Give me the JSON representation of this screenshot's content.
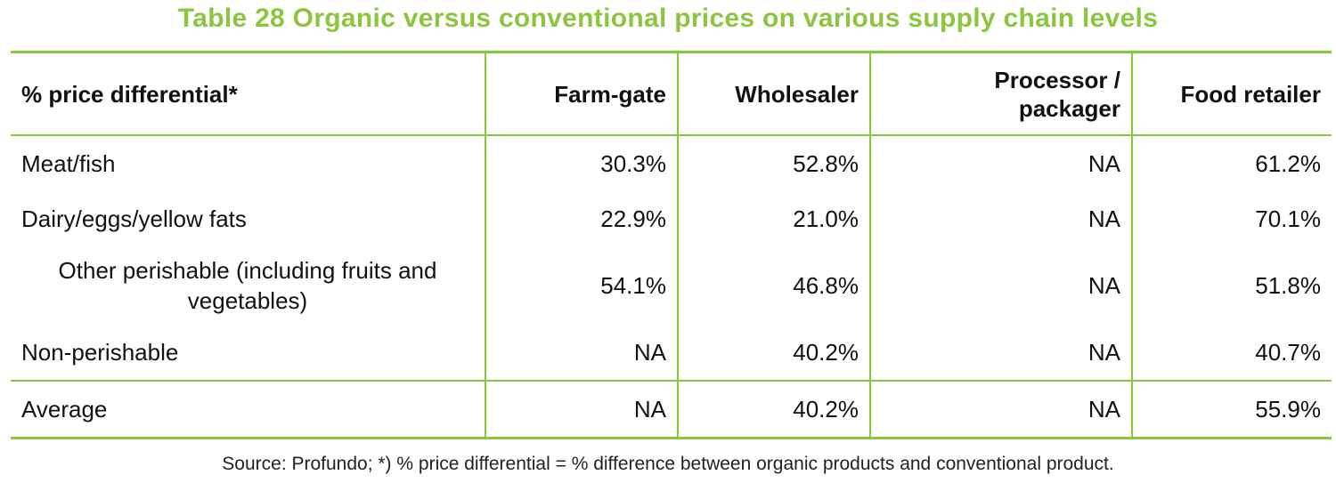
{
  "title": "Table 28   Organic versus conventional prices on various supply chain levels",
  "headers": {
    "label": "% price differential*",
    "farm_gate": "Farm-gate",
    "wholesaler": "Wholesaler",
    "processor_line1": "Processor /",
    "processor_line2": "packager",
    "retailer": "Food retailer"
  },
  "rows": [
    {
      "label": "Meat/fish",
      "farm_gate": "30.3%",
      "wholesaler": "52.8%",
      "processor": "NA",
      "retailer": "61.2%"
    },
    {
      "label": "Dairy/eggs/yellow fats",
      "farm_gate": "22.9%",
      "wholesaler": "21.0%",
      "processor": "NA",
      "retailer": "70.1%"
    },
    {
      "label_line1": "Other perishable (including fruits and",
      "label_line2": "vegetables)",
      "farm_gate": "54.1%",
      "wholesaler": "46.8%",
      "processor": "NA",
      "retailer": "51.8%"
    },
    {
      "label": "Non-perishable",
      "farm_gate": "NA",
      "wholesaler": "40.2%",
      "processor": "NA",
      "retailer": "40.7%"
    }
  ],
  "average": {
    "label": "Average",
    "farm_gate": "NA",
    "wholesaler": "40.2%",
    "processor": "NA",
    "retailer": "55.9%"
  },
  "source": "Source: Profundo; *) % price differential = % difference between organic products and conventional product.",
  "colors": {
    "accent": "#8cc63f",
    "text": "#111111"
  }
}
